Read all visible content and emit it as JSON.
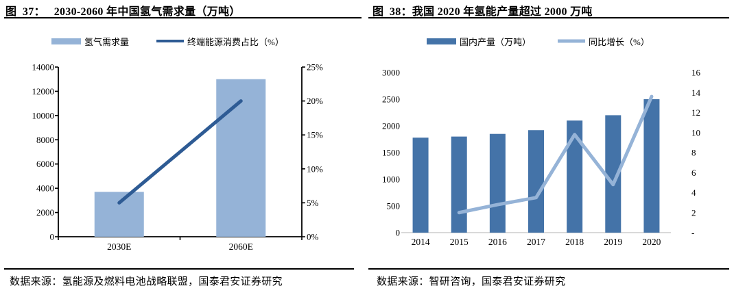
{
  "colors": {
    "light_blue": "#95B3D7",
    "dark_bar_blue": "#4473A8",
    "dark_line_blue": "#2E5B94",
    "axis_black": "#000000",
    "baseline_gray": "#D9D9D9",
    "rule_black": "#000000"
  },
  "figures": [
    {
      "title": "图  37：   2030-2060 年中国氢气需求量（万吨）",
      "source": "数据来源：氢能源及燃料电池战略联盟，国泰君安证券研究"
    },
    {
      "title": "图  38：我国 2020 年氢能产量超过 2000 万吨",
      "source": "数据来源：智研咨询，国泰君安证券研究"
    }
  ],
  "chart_data": [
    {
      "type": "bar+line",
      "title": "2030-2060 年中国氢气需求量（万吨）",
      "categories": [
        "2030E",
        "2060E"
      ],
      "series": [
        {
          "name": "氢气需求量",
          "type": "bar",
          "axis": "left",
          "color": "#95B3D7",
          "values": [
            3700,
            13000
          ]
        },
        {
          "name": "终端能源消费占比（%）",
          "type": "line",
          "axis": "right",
          "color": "#2E5B94",
          "values": [
            5,
            20
          ]
        }
      ],
      "left_axis": {
        "min": 0,
        "max": 14000,
        "tick_labels": [
          "0",
          "2000",
          "4000",
          "6000",
          "8000",
          "10000",
          "12000",
          "14000"
        ]
      },
      "right_axis": {
        "min": 0,
        "max": 25,
        "tick_labels": [
          "0%",
          "5%",
          "10%",
          "15%",
          "20%",
          "25%"
        ]
      },
      "grid": false,
      "legend_position": "top",
      "frame": "boxed"
    },
    {
      "type": "bar+line",
      "title": "我国 2020 年氢能产量超过 2000 万吨",
      "categories": [
        "2014",
        "2015",
        "2016",
        "2017",
        "2018",
        "2019",
        "2020"
      ],
      "series": [
        {
          "name": "国内产量（万吨）",
          "type": "bar",
          "axis": "left",
          "color": "#4473A8",
          "values": [
            1780,
            1800,
            1850,
            1920,
            2100,
            2200,
            2500
          ]
        },
        {
          "name": "同比增长（%）",
          "type": "line",
          "axis": "right",
          "color": "#95B3D7",
          "values": [
            null,
            2,
            2.8,
            3.5,
            9.8,
            4.8,
            13.6
          ]
        }
      ],
      "left_axis": {
        "min": 0,
        "max": 3000,
        "tick_labels": [
          "0",
          "500",
          "1000",
          "1500",
          "2000",
          "2500",
          "3000"
        ]
      },
      "right_axis": {
        "min": 0,
        "max": 16,
        "tick_labels": [
          "-",
          "2",
          "4",
          "6",
          "8",
          "10",
          "12",
          "14",
          "16"
        ]
      },
      "grid": false,
      "legend_position": "top",
      "frame": "open"
    }
  ]
}
